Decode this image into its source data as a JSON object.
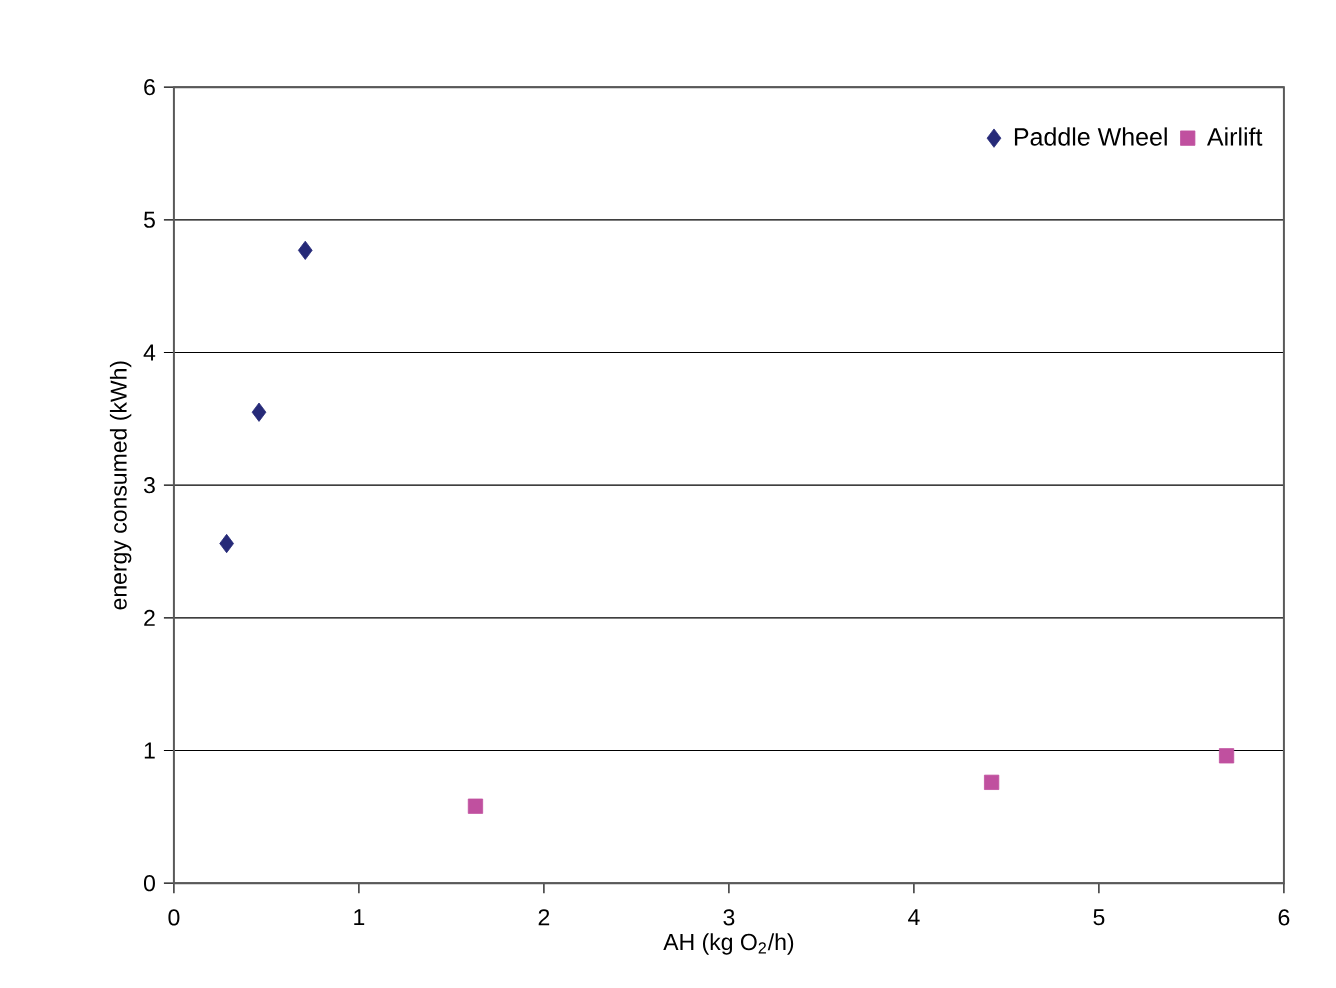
{
  "chart_data": {
    "type": "scatter",
    "xlabel": "AH (kg O$_{2}$/h)",
    "ylabel": "energy consumed (kWh)",
    "xlim": [
      0,
      6
    ],
    "xticks": [
      0,
      1,
      2,
      3,
      4,
      5,
      6
    ],
    "ylim": [
      0,
      6
    ],
    "yticks": [
      0,
      1,
      2,
      3,
      4,
      5,
      6
    ],
    "grid": "y",
    "legend": "top right",
    "series": [
      {
        "name": "Paddle Wheel",
        "color": "#262a78",
        "marker": "diamond",
        "x": [
          0.285,
          0.46,
          0.71
        ],
        "values": [
          2.56,
          3.55,
          4.77
        ]
      },
      {
        "name": "Airlift",
        "color": "#c0509f",
        "marker": "square",
        "x": [
          1.63,
          4.42,
          5.69
        ],
        "values": [
          0.58,
          0.76,
          0.96
        ]
      }
    ]
  }
}
